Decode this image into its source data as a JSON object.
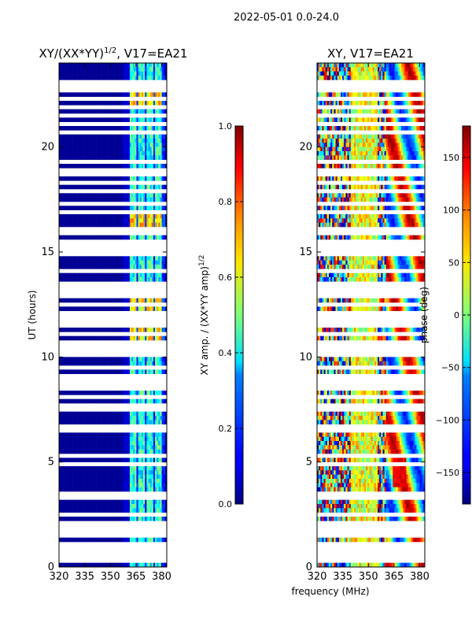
{
  "suptitle": "2022-05-01 0.0-24.0",
  "xlabel": "frequency (MHz)",
  "chart_data": [
    {
      "type": "heatmap",
      "title_prefix": "XY/(XX*YY)",
      "title_sup": "1/2",
      "title_suffix": ", V17=EA21",
      "ylabel": "UT (hours)",
      "xlim": [
        320,
        383
      ],
      "ylim": [
        0,
        24
      ],
      "xticks": [
        320,
        335,
        350,
        365,
        380
      ],
      "yticks": [
        0,
        5,
        10,
        15,
        20
      ],
      "colormap": "jet",
      "colorbar": {
        "label_main": "XY amp. / (XX*YY amp)",
        "label_sup": "1/2",
        "range": [
          0.0,
          1.0
        ],
        "ticks": [
          "0.0",
          "0.2",
          "0.4",
          "0.6",
          "0.8",
          "1.0"
        ]
      }
    },
    {
      "type": "heatmap",
      "title": "XY, V17=EA21",
      "xlim": [
        320,
        383
      ],
      "ylim": [
        0,
        24
      ],
      "xticks": [
        320,
        335,
        350,
        365,
        380
      ],
      "yticks": [
        0,
        5,
        10,
        15,
        20
      ],
      "colormap": "jet",
      "colorbar": {
        "label": "phase (deg)",
        "range": [
          -180,
          180
        ],
        "ticks": [
          "150",
          "100",
          "50",
          "0",
          "−50",
          "−100",
          "−150"
        ]
      }
    }
  ],
  "colors": {
    "background": "#ffffff",
    "low": "#00007f",
    "high": "#7f0000"
  }
}
